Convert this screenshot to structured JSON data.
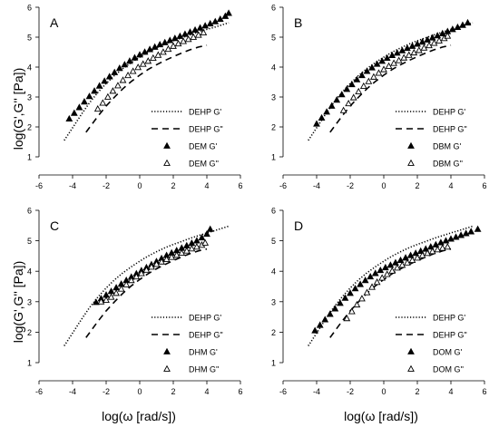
{
  "figure": {
    "ylabel": "log(G',G'' [Pa])",
    "xlabel": "log(ω [rad/s])",
    "x_ticks": [
      -6,
      -4,
      -2,
      0,
      2,
      4,
      6
    ],
    "y_ticks": [
      1,
      2,
      3,
      4,
      5,
      6
    ]
  },
  "chart_data": [
    {
      "panel": "A",
      "type": "scatter",
      "xlim": [
        -6,
        6
      ],
      "ylim": [
        1,
        6
      ],
      "legend": "bottom-right",
      "series": [
        {
          "name": "DEHP G'",
          "style": "dotted-line",
          "x": [
            -4.5,
            -4,
            -3.5,
            -3,
            -2.5,
            -2,
            -1.5,
            -1,
            -0.5,
            0,
            0.5,
            1,
            1.5,
            2,
            2.5,
            3,
            3.5,
            4,
            4.5,
            5,
            5.3
          ],
          "y": [
            1.55,
            1.97,
            2.4,
            2.8,
            3.15,
            3.45,
            3.72,
            3.95,
            4.15,
            4.33,
            4.5,
            4.64,
            4.77,
            4.88,
            4.98,
            5.08,
            5.17,
            5.26,
            5.34,
            5.43,
            5.48
          ]
        },
        {
          "name": "DEHP G''",
          "style": "dashed-line",
          "x": [
            -3.2,
            -2.5,
            -2,
            -1.5,
            -1,
            -0.5,
            0,
            0.5,
            1,
            1.5,
            2,
            2.5,
            3,
            3.5,
            4
          ],
          "y": [
            1.82,
            2.35,
            2.7,
            3.0,
            3.28,
            3.52,
            3.73,
            3.92,
            4.08,
            4.22,
            4.35,
            4.47,
            4.58,
            4.67,
            4.73
          ]
        },
        {
          "name": "DEM G'",
          "style": "filled-triangle",
          "x": [
            -4.2,
            -3.9,
            -3.6,
            -3.3,
            -3.0,
            -2.7,
            -2.4,
            -2.1,
            -1.8,
            -1.5,
            -1.2,
            -0.9,
            -0.6,
            -0.3,
            0.0,
            0.3,
            0.6,
            0.9,
            1.2,
            1.5,
            1.8,
            2.1,
            2.4,
            2.7,
            3.0,
            3.3,
            3.6,
            3.9,
            4.2,
            4.5,
            4.8,
            5.1,
            5.3
          ],
          "y": [
            2.27,
            2.46,
            2.65,
            2.84,
            3.02,
            3.2,
            3.37,
            3.53,
            3.68,
            3.82,
            3.96,
            4.08,
            4.2,
            4.31,
            4.41,
            4.5,
            4.59,
            4.67,
            4.75,
            4.82,
            4.89,
            4.96,
            5.03,
            5.1,
            5.17,
            5.24,
            5.31,
            5.38,
            5.45,
            5.52,
            5.6,
            5.7,
            5.8
          ]
        },
        {
          "name": "DEM G''",
          "style": "open-triangle",
          "x": [
            -2.5,
            -2.2,
            -1.9,
            -1.6,
            -1.3,
            -1.0,
            -0.7,
            -0.4,
            -0.1,
            0.2,
            0.5,
            0.8,
            1.1,
            1.4,
            1.7,
            2.0,
            2.3,
            2.6,
            2.9,
            3.2,
            3.5,
            3.8
          ],
          "y": [
            2.6,
            2.8,
            3.0,
            3.2,
            3.38,
            3.56,
            3.72,
            3.86,
            3.99,
            4.1,
            4.2,
            4.3,
            4.4,
            4.5,
            4.6,
            4.7,
            4.78,
            4.86,
            4.93,
            5.0,
            5.07,
            5.15
          ]
        }
      ]
    },
    {
      "panel": "B",
      "type": "scatter",
      "xlim": [
        -6,
        6
      ],
      "ylim": [
        1,
        6
      ],
      "legend": "bottom-right",
      "series": [
        {
          "name": "DEHP G'",
          "style": "dotted-line",
          "x": [
            -4.5,
            -4,
            -3.5,
            -3,
            -2.5,
            -2,
            -1.5,
            -1,
            -0.5,
            0,
            0.5,
            1,
            1.5,
            2,
            2.5,
            3,
            3.5,
            4,
            4.5,
            5,
            5.3
          ],
          "y": [
            1.55,
            1.97,
            2.4,
            2.8,
            3.15,
            3.45,
            3.72,
            3.95,
            4.15,
            4.33,
            4.5,
            4.64,
            4.77,
            4.88,
            4.98,
            5.08,
            5.17,
            5.26,
            5.34,
            5.43,
            5.48
          ]
        },
        {
          "name": "DEHP G''",
          "style": "dashed-line",
          "x": [
            -3.2,
            -2.5,
            -2,
            -1.5,
            -1,
            -0.5,
            0,
            0.5,
            1,
            1.5,
            2,
            2.5,
            3,
            3.5,
            4
          ],
          "y": [
            1.82,
            2.35,
            2.7,
            3.0,
            3.28,
            3.52,
            3.73,
            3.92,
            4.08,
            4.22,
            4.35,
            4.47,
            4.58,
            4.67,
            4.73
          ]
        },
        {
          "name": "DBM G'",
          "style": "filled-triangle",
          "x": [
            -4.0,
            -3.7,
            -3.4,
            -3.1,
            -2.8,
            -2.5,
            -2.2,
            -1.9,
            -1.6,
            -1.3,
            -1.0,
            -0.7,
            -0.4,
            -0.1,
            0.2,
            0.5,
            0.8,
            1.1,
            1.4,
            1.7,
            2.0,
            2.3,
            2.6,
            2.9,
            3.2,
            3.5,
            3.8,
            4.1,
            4.4,
            4.7,
            5.0
          ],
          "y": [
            2.1,
            2.3,
            2.5,
            2.7,
            2.9,
            3.08,
            3.26,
            3.42,
            3.58,
            3.72,
            3.86,
            3.98,
            4.1,
            4.2,
            4.3,
            4.39,
            4.47,
            4.55,
            4.63,
            4.7,
            4.77,
            4.84,
            4.91,
            4.98,
            5.05,
            5.12,
            5.19,
            5.26,
            5.33,
            5.4,
            5.48
          ]
        },
        {
          "name": "DBM G''",
          "style": "open-triangle",
          "x": [
            -2.4,
            -2.1,
            -1.8,
            -1.5,
            -1.2,
            -0.9,
            -0.6,
            -0.3,
            0.0,
            0.3,
            0.6,
            0.9,
            1.2,
            1.5,
            1.8,
            2.1,
            2.4,
            2.7,
            3.0,
            3.3,
            3.6,
            3.8
          ],
          "y": [
            2.55,
            2.78,
            2.98,
            3.18,
            3.36,
            3.52,
            3.67,
            3.8,
            3.92,
            4.03,
            4.13,
            4.22,
            4.31,
            4.4,
            4.48,
            4.56,
            4.64,
            4.72,
            4.8,
            4.88,
            4.96,
            5.04
          ]
        }
      ]
    },
    {
      "panel": "C",
      "type": "scatter",
      "xlim": [
        -6,
        6
      ],
      "ylim": [
        1,
        6
      ],
      "legend": "bottom-right",
      "series": [
        {
          "name": "DEHP G'",
          "style": "dotted-line",
          "x": [
            -4.5,
            -4,
            -3.5,
            -3,
            -2.5,
            -2,
            -1.5,
            -1,
            -0.5,
            0,
            0.5,
            1,
            1.5,
            2,
            2.5,
            3,
            3.5,
            4,
            4.5,
            5,
            5.3
          ],
          "y": [
            1.55,
            1.97,
            2.4,
            2.8,
            3.15,
            3.45,
            3.72,
            3.95,
            4.15,
            4.33,
            4.5,
            4.64,
            4.77,
            4.88,
            4.98,
            5.08,
            5.17,
            5.26,
            5.34,
            5.43,
            5.48
          ]
        },
        {
          "name": "DEHP G''",
          "style": "dashed-line",
          "x": [
            -3.2,
            -2.5,
            -2,
            -1.5,
            -1,
            -0.5,
            0,
            0.5,
            1,
            1.5,
            2,
            2.5,
            3,
            3.5,
            4
          ],
          "y": [
            1.82,
            2.35,
            2.7,
            3.0,
            3.28,
            3.52,
            3.73,
            3.92,
            4.08,
            4.22,
            4.35,
            4.47,
            4.58,
            4.67,
            4.73
          ]
        },
        {
          "name": "DHM G'",
          "style": "filled-triangle",
          "x": [
            -2.6,
            -2.3,
            -2.0,
            -1.7,
            -1.4,
            -1.1,
            -0.8,
            -0.5,
            -0.2,
            0.1,
            0.4,
            0.7,
            1.0,
            1.3,
            1.6,
            1.9,
            2.2,
            2.5,
            2.8,
            3.1,
            3.4,
            3.7,
            4.0,
            4.2
          ],
          "y": [
            2.98,
            3.1,
            3.22,
            3.34,
            3.46,
            3.58,
            3.7,
            3.81,
            3.92,
            4.02,
            4.12,
            4.22,
            4.32,
            4.42,
            4.52,
            4.6,
            4.68,
            4.76,
            4.84,
            4.92,
            5.0,
            5.1,
            5.22,
            5.38
          ]
        },
        {
          "name": "DHM G''",
          "style": "open-triangle",
          "x": [
            -2.3,
            -2.0,
            -1.7,
            -1.4,
            -1.1,
            -0.8,
            -0.5,
            -0.2,
            0.1,
            0.4,
            0.7,
            1.0,
            1.3,
            1.6,
            1.9,
            2.2,
            2.5,
            2.8,
            3.1,
            3.4,
            3.7,
            3.9
          ],
          "y": [
            3.0,
            3.05,
            3.15,
            3.28,
            3.42,
            3.56,
            3.7,
            3.82,
            3.93,
            4.04,
            4.14,
            4.23,
            4.31,
            4.39,
            4.46,
            4.53,
            4.6,
            4.67,
            4.74,
            4.8,
            4.86,
            4.93
          ]
        }
      ]
    },
    {
      "panel": "D",
      "type": "scatter",
      "xlim": [
        -6,
        6
      ],
      "ylim": [
        1,
        6
      ],
      "legend": "bottom-right",
      "series": [
        {
          "name": "DEHP G'",
          "style": "dotted-line",
          "x": [
            -4.5,
            -4,
            -3.5,
            -3,
            -2.5,
            -2,
            -1.5,
            -1,
            -0.5,
            0,
            0.5,
            1,
            1.5,
            2,
            2.5,
            3,
            3.5,
            4,
            4.5,
            5,
            5.3
          ],
          "y": [
            1.55,
            1.97,
            2.4,
            2.8,
            3.15,
            3.45,
            3.72,
            3.95,
            4.15,
            4.33,
            4.5,
            4.64,
            4.77,
            4.88,
            4.98,
            5.08,
            5.17,
            5.26,
            5.34,
            5.43,
            5.48
          ]
        },
        {
          "name": "DEHP G''",
          "style": "dashed-line",
          "x": [
            -3.2,
            -2.5,
            -2,
            -1.5,
            -1,
            -0.5,
            0,
            0.5,
            1,
            1.5,
            2,
            2.5,
            3,
            3.5,
            4
          ],
          "y": [
            1.82,
            2.35,
            2.7,
            3.0,
            3.28,
            3.52,
            3.73,
            3.92,
            4.08,
            4.22,
            4.35,
            4.47,
            4.58,
            4.67,
            4.73
          ]
        },
        {
          "name": "DOM G'",
          "style": "filled-triangle",
          "x": [
            -4.1,
            -3.8,
            -3.5,
            -3.2,
            -2.9,
            -2.6,
            -2.3,
            -2.0,
            -1.7,
            -1.4,
            -1.1,
            -0.8,
            -0.5,
            -0.2,
            0.1,
            0.4,
            0.7,
            1.0,
            1.3,
            1.6,
            1.9,
            2.2,
            2.5,
            2.8,
            3.1,
            3.4,
            3.7,
            4.0,
            4.3,
            4.6,
            4.9,
            5.2,
            5.6
          ],
          "y": [
            2.05,
            2.23,
            2.41,
            2.59,
            2.77,
            2.95,
            3.12,
            3.28,
            3.43,
            3.57,
            3.7,
            3.82,
            3.93,
            4.03,
            4.12,
            4.2,
            4.28,
            4.36,
            4.44,
            4.52,
            4.59,
            4.66,
            4.73,
            4.8,
            4.87,
            4.94,
            5.0,
            5.06,
            5.12,
            5.18,
            5.24,
            5.3,
            5.38
          ]
        },
        {
          "name": "DOM G''",
          "style": "open-triangle",
          "x": [
            -2.2,
            -1.9,
            -1.6,
            -1.3,
            -1.0,
            -0.7,
            -0.4,
            -0.1,
            0.2,
            0.5,
            0.8,
            1.1,
            1.4,
            1.7,
            2.0,
            2.3,
            2.6,
            2.9,
            3.2,
            3.5,
            3.8
          ],
          "y": [
            2.45,
            2.68,
            2.9,
            3.1,
            3.3,
            3.48,
            3.64,
            3.78,
            3.9,
            4.01,
            4.11,
            4.2,
            4.28,
            4.36,
            4.44,
            4.52,
            4.59,
            4.65,
            4.71,
            4.76,
            4.8
          ]
        }
      ]
    }
  ]
}
